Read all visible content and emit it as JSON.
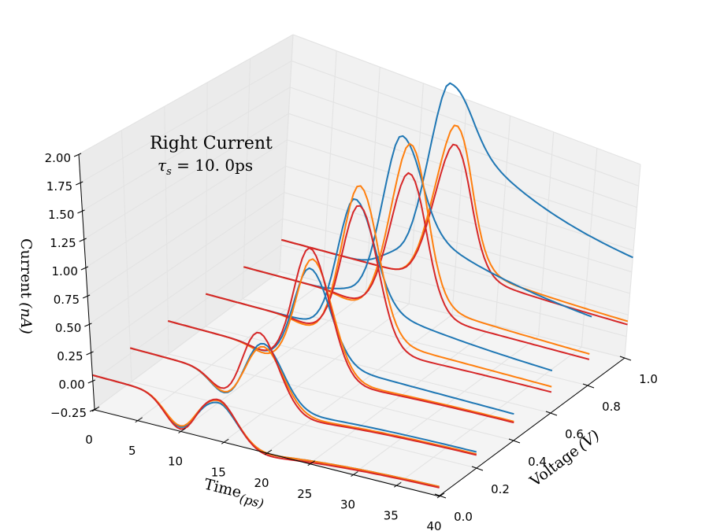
{
  "chart_data": {
    "type": "line",
    "projection": "3d",
    "title": "Right Current",
    "subtitle": "τs = 10.0ps",
    "subtitle_parts": {
      "symbol": "τ",
      "subscript": "s",
      "rest": " = 10. 0ps"
    },
    "xlabel": "Time",
    "xlabel_unit": "(ps)",
    "ylabel": "Voltage",
    "ylabel_unit": "(V)",
    "zlabel": "Current",
    "zlabel_unit": "(nA)",
    "xlim": [
      0,
      40
    ],
    "ylim": [
      0,
      1.0
    ],
    "zlim": [
      -0.25,
      2.0
    ],
    "xticks": [
      "0",
      "5",
      "10",
      "15",
      "20",
      "25",
      "30",
      "35",
      "40"
    ],
    "yticks": [
      "0.0",
      "0.2",
      "0.4",
      "0.6",
      "0.8",
      "1.0"
    ],
    "zticks": [
      "−0.25",
      "0.00",
      "0.25",
      "0.50",
      "0.75",
      "1.00",
      "1.25",
      "1.50",
      "1.75",
      "2.00"
    ],
    "grid": true,
    "colors": {
      "blue": "#1f77b4",
      "orange": "#ff7f0e",
      "red": "#d62728",
      "pane": "#f2f2f2",
      "grid": "#e3e3e3"
    },
    "time_range": [
      0,
      40
    ],
    "voltages": [
      0.0,
      0.2,
      0.4,
      0.6,
      0.8,
      1.0
    ],
    "series": [
      {
        "name": "blue",
        "color": "#1f77b4",
        "slices": [
          {
            "voltage": 0.0,
            "start": 0.05,
            "dip_t": 10,
            "dip": -0.22,
            "peak_t": 14.5,
            "peak": 0.12,
            "end": -0.12
          },
          {
            "voltage": 0.2,
            "start": 0.05,
            "dip_t": 11,
            "dip": -0.15,
            "peak_t": 15.5,
            "peak": 0.45,
            "end": -0.05
          },
          {
            "voltage": 0.4,
            "start": 0.05,
            "dip_t": 11.5,
            "dip": 0.0,
            "peak_t": 16.5,
            "peak": 0.95,
            "end": 0.05
          },
          {
            "voltage": 0.6,
            "start": 0.05,
            "dip_t": 12,
            "dip": 0.05,
            "peak_t": 17,
            "peak": 1.4,
            "end": 0.2
          },
          {
            "voltage": 0.8,
            "start": 0.05,
            "dip_t": 12.5,
            "dip": 0.1,
            "peak_t": 17.5,
            "peak": 1.8,
            "end": 0.45
          },
          {
            "voltage": 1.0,
            "start": 0.05,
            "dip_t": 13,
            "dip": 0.2,
            "peak_t": 18,
            "peak": 2.1,
            "end": 0.75
          }
        ]
      },
      {
        "name": "orange",
        "color": "#ff7f0e",
        "slices": [
          {
            "voltage": 0.0,
            "start": 0.05,
            "dip_t": 10,
            "dip": -0.21,
            "peak_t": 14.5,
            "peak": 0.14,
            "end": -0.12
          },
          {
            "voltage": 0.2,
            "start": 0.05,
            "dip_t": 11,
            "dip": -0.14,
            "peak_t": 15.5,
            "peak": 0.42,
            "end": -0.07
          },
          {
            "voltage": 0.4,
            "start": 0.05,
            "dip_t": 11.5,
            "dip": -0.02,
            "peak_t": 16.8,
            "peak": 1.05,
            "end": -0.02
          },
          {
            "voltage": 0.6,
            "start": 0.05,
            "dip_t": 12,
            "dip": 0.0,
            "peak_t": 17.5,
            "peak": 1.55,
            "end": 0.05
          },
          {
            "voltage": 0.8,
            "start": 0.05,
            "dip_t": 12.5,
            "dip": 0.0,
            "peak_t": 18.5,
            "peak": 1.75,
            "end": 0.1
          },
          {
            "voltage": 1.0,
            "start": 0.05,
            "dip_t": 13,
            "dip": 0.05,
            "peak_t": 19,
            "peak": 1.7,
            "end": 0.15
          }
        ]
      },
      {
        "name": "red",
        "color": "#d62728",
        "slices": [
          {
            "voltage": 0.0,
            "start": 0.05,
            "dip_t": 10,
            "dip": -0.24,
            "peak_t": 14.5,
            "peak": 0.15,
            "end": -0.13
          },
          {
            "voltage": 0.2,
            "start": 0.05,
            "dip_t": 11,
            "dip": -0.13,
            "peak_t": 15,
            "peak": 0.55,
            "end": -0.08
          },
          {
            "voltage": 0.4,
            "start": 0.05,
            "dip_t": 11.5,
            "dip": 0.0,
            "peak_t": 16.5,
            "peak": 1.15,
            "end": -0.03
          },
          {
            "voltage": 0.6,
            "start": 0.05,
            "dip_t": 12,
            "dip": 0.02,
            "peak_t": 17.5,
            "peak": 1.35,
            "end": 0.0
          },
          {
            "voltage": 0.8,
            "start": 0.05,
            "dip_t": 12.5,
            "dip": 0.02,
            "peak_t": 18.5,
            "peak": 1.45,
            "end": 0.05
          },
          {
            "voltage": 1.0,
            "start": 0.05,
            "dip_t": 13,
            "dip": 0.05,
            "peak_t": 19,
            "peak": 1.5,
            "end": 0.12
          }
        ]
      }
    ]
  }
}
